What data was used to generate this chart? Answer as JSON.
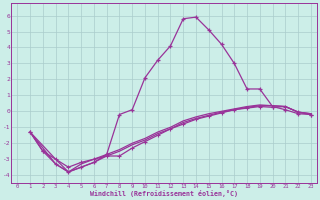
{
  "xlabel": "Windchill (Refroidissement éolien,°C)",
  "bg_color": "#cceee8",
  "grid_color": "#aacccc",
  "line_color": "#993399",
  "xlim": [
    -0.5,
    23.5
  ],
  "ylim": [
    -4.5,
    6.8
  ],
  "xticks": [
    0,
    1,
    2,
    3,
    4,
    5,
    6,
    7,
    8,
    9,
    10,
    11,
    12,
    13,
    14,
    15,
    16,
    17,
    18,
    19,
    20,
    21,
    22,
    23
  ],
  "yticks": [
    -4,
    -3,
    -2,
    -1,
    0,
    1,
    2,
    3,
    4,
    5,
    6
  ],
  "s1_x": [
    1,
    2,
    3,
    4,
    5,
    6,
    7,
    8,
    9,
    10,
    11,
    12,
    13,
    14,
    15,
    16,
    17,
    18,
    19,
    20,
    21,
    22,
    23
  ],
  "s1_y": [
    -1.3,
    -2.5,
    -3.3,
    -3.8,
    -3.5,
    -3.2,
    -2.7,
    -0.2,
    0.1,
    2.1,
    3.2,
    4.1,
    5.8,
    5.9,
    5.1,
    4.2,
    3.0,
    1.4,
    1.4,
    0.3,
    0.1,
    -0.15,
    -0.2
  ],
  "s2_x": [
    1,
    2,
    3,
    4,
    5,
    6,
    7,
    8,
    9,
    10,
    11,
    12,
    13,
    14,
    15,
    16,
    17,
    18,
    19,
    20,
    21,
    22,
    23
  ],
  "s2_y": [
    -1.3,
    -2.5,
    -3.0,
    -3.5,
    -3.2,
    -3.0,
    -2.8,
    -2.8,
    -2.3,
    -1.9,
    -1.5,
    -1.1,
    -0.8,
    -0.5,
    -0.3,
    -0.1,
    0.1,
    0.2,
    0.3,
    0.25,
    0.3,
    -0.05,
    -0.2
  ],
  "s3_x": [
    1,
    3,
    4,
    5,
    6,
    7,
    8,
    9,
    10,
    11,
    12,
    13,
    14,
    15,
    16,
    17,
    18,
    19,
    20,
    21,
    22,
    23
  ],
  "s3_y": [
    -1.3,
    -3.3,
    -3.8,
    -3.5,
    -3.2,
    -2.8,
    -2.5,
    -2.1,
    -1.8,
    -1.4,
    -1.1,
    -0.7,
    -0.45,
    -0.25,
    -0.05,
    0.1,
    0.25,
    0.35,
    0.35,
    0.3,
    -0.05,
    -0.15
  ],
  "s4_x": [
    1,
    3,
    4,
    5,
    6,
    7,
    8,
    9,
    10,
    11,
    12,
    13,
    14,
    15,
    16,
    17,
    18,
    19,
    20,
    21,
    22,
    23
  ],
  "s4_y": [
    -1.3,
    -3.0,
    -3.8,
    -3.3,
    -3.0,
    -2.7,
    -2.4,
    -2.0,
    -1.7,
    -1.3,
    -1.0,
    -0.6,
    -0.35,
    -0.15,
    0.0,
    0.15,
    0.3,
    0.4,
    0.35,
    0.3,
    -0.05,
    -0.15
  ]
}
